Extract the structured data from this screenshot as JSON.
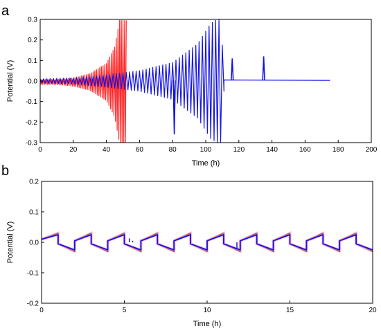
{
  "colors": {
    "red": "#ff2a2a",
    "blue": "#1414e6",
    "brown": "#a0522d",
    "pink": "#ff99cc"
  },
  "chart_data": [
    {
      "panel_label": "a",
      "type": "line",
      "xlabel": "Time (h)",
      "ylabel": "Potential (V)",
      "xlim": [
        0,
        200
      ],
      "ylim": [
        -0.3,
        0.3
      ],
      "x_ticks": [
        "0",
        "20",
        "40",
        "60",
        "80",
        "100",
        "120",
        "140",
        "160",
        "180",
        "200"
      ],
      "y_ticks": [
        "-0.3",
        "-0.2",
        "-0.1",
        "0.0",
        "0.1",
        "0.2",
        "0.3"
      ],
      "grid": false,
      "series": [
        {
          "color": "red",
          "kind": "oscillation",
          "start": 0,
          "end": 52,
          "period": 1,
          "amplitude_envelope": [
            [
              0,
              0.012
            ],
            [
              10,
              0.012
            ],
            [
              20,
              0.02
            ],
            [
              30,
              0.04
            ],
            [
              40,
              0.09
            ],
            [
              45,
              0.17
            ],
            [
              48,
              0.3
            ],
            [
              52,
              0.3
            ]
          ],
          "offset": -0.005
        },
        {
          "color": "blue",
          "kind": "oscillation",
          "start": 0,
          "end": 111,
          "period": 2,
          "amplitude_envelope": [
            [
              0,
              0.01
            ],
            [
              20,
              0.015
            ],
            [
              40,
              0.03
            ],
            [
              60,
              0.05
            ],
            [
              80,
              0.09
            ],
            [
              95,
              0.18
            ],
            [
              103,
              0.28
            ],
            [
              107,
              0.3
            ],
            [
              109,
              0.3
            ],
            [
              111,
              0.05
            ]
          ],
          "offset": 0.0,
          "spikes": [
            [
              81,
              -0.26
            ],
            [
              116,
              0.11
            ],
            [
              135,
              0.12
            ]
          ],
          "tail": [
            [
              111,
              0.005
            ],
            [
              175,
              0.003
            ]
          ]
        }
      ]
    },
    {
      "panel_label": "b",
      "type": "line",
      "xlabel": "Time (h)",
      "ylabel": "Potential (V)",
      "xlim": [
        0,
        20
      ],
      "ylim": [
        -0.2,
        0.2
      ],
      "x_ticks": [
        "0",
        "5",
        "10",
        "15",
        "20"
      ],
      "y_ticks": [
        "-0.2",
        "-0.1",
        "0.0",
        "0.1",
        "0.2"
      ],
      "grid": false,
      "series": [
        {
          "color": "brown",
          "kind": "square",
          "period": 2,
          "start_offset": 1.0,
          "high": [
            0.03,
            0.005
          ],
          "low": [
            -0.005,
            -0.03
          ]
        },
        {
          "color": "blue",
          "kind": "square",
          "period": 2,
          "start_offset": 1.0,
          "high": [
            0.025,
            0.005
          ],
          "low": [
            -0.005,
            -0.025
          ],
          "glitches": [
            [
              5.3,
              0.013
            ],
            [
              5.5,
              0.005
            ],
            [
              6.0,
              -0.01
            ],
            [
              11.8,
              -0.02
            ]
          ]
        }
      ]
    }
  ]
}
